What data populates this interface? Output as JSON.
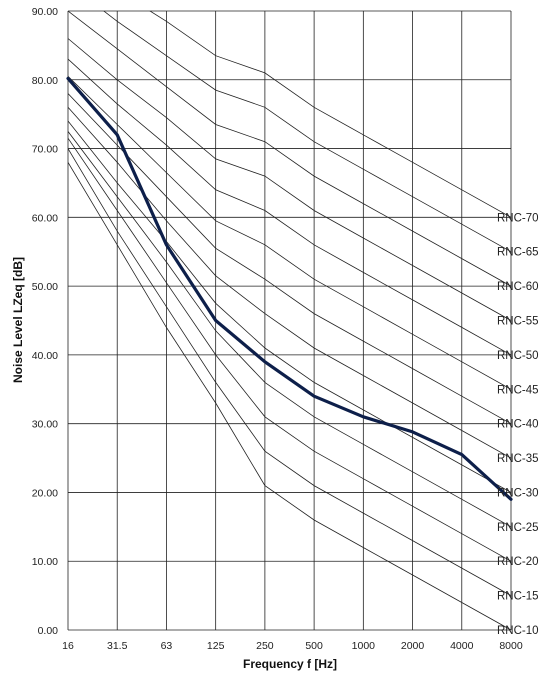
{
  "chart_data": {
    "type": "line",
    "xlabel": "Frequency f [Hz]",
    "ylabel": "Noise Level LZeq [dB]",
    "categories": [
      "16",
      "31.5",
      "63",
      "125",
      "250",
      "500",
      "1000",
      "2000",
      "4000",
      "8000"
    ],
    "y_ticks": [
      "0.00",
      "10.00",
      "20.00",
      "30.00",
      "40.00",
      "50.00",
      "60.00",
      "70.00",
      "80.00",
      "90.00"
    ],
    "ylim": [
      0,
      90
    ],
    "grid": true,
    "criteria_curves": [
      {
        "name": "RNC-10",
        "values": [
          68,
          56,
          44,
          33,
          21,
          16,
          12,
          8,
          4,
          0
        ]
      },
      {
        "name": "RNC-15",
        "values": [
          70,
          58,
          47,
          36,
          26,
          21,
          17,
          13,
          9,
          5
        ]
      },
      {
        "name": "RNC-20",
        "values": [
          71.5,
          61,
          50.5,
          40,
          31,
          26,
          22,
          18,
          14,
          10
        ]
      },
      {
        "name": "RNC-25",
        "values": [
          72.5,
          63,
          53.5,
          43.5,
          36,
          31,
          27,
          23,
          19,
          15
        ]
      },
      {
        "name": "RNC-30",
        "values": [
          74,
          65,
          56.5,
          47.5,
          41,
          36,
          32,
          28,
          24,
          20
        ]
      },
      {
        "name": "RNC-35",
        "values": [
          76,
          68,
          59.5,
          51.5,
          46,
          41,
          37,
          33,
          29,
          25
        ]
      },
      {
        "name": "RNC-40",
        "values": [
          78,
          70.5,
          63,
          55.5,
          51,
          46,
          42,
          38,
          34,
          30
        ]
      },
      {
        "name": "RNC-45",
        "values": [
          80.5,
          73.5,
          66.5,
          59.5,
          56,
          51,
          47,
          43,
          39,
          35
        ]
      },
      {
        "name": "RNC-50",
        "values": [
          83,
          76.5,
          70.5,
          64,
          61,
          56,
          52,
          48,
          44,
          40
        ]
      },
      {
        "name": "RNC-55",
        "values": [
          86,
          80,
          74.5,
          68.5,
          66,
          61,
          57,
          53,
          49,
          45
        ]
      },
      {
        "name": "RNC-60",
        "values": [
          90,
          84.5,
          79,
          73.5,
          71,
          66,
          62,
          58,
          54,
          50
        ]
      },
      {
        "name": "RNC-65",
        "values": [
          94,
          88.5,
          83.5,
          78.5,
          76,
          71,
          67,
          63,
          59,
          55
        ]
      },
      {
        "name": "RNC-70",
        "values": [
          98,
          93,
          88.5,
          83.5,
          81,
          76,
          72,
          68,
          64,
          60
        ]
      }
    ],
    "series": [
      {
        "values": [
          80.2,
          72,
          56,
          45,
          39,
          34,
          31,
          28.8,
          25.5,
          19
        ],
        "color": "#0d1f4a"
      }
    ],
    "colors": {
      "grid": "#222222",
      "curves": "#222222",
      "measured": "#0d1f4a"
    }
  }
}
